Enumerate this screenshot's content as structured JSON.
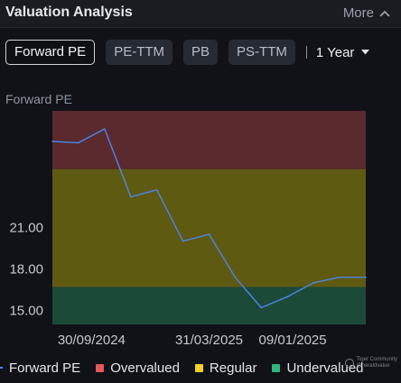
{
  "header": {
    "title": "Valuation Analysis",
    "more_label": "More"
  },
  "tabs": [
    {
      "label": "Forward PE",
      "active": true
    },
    {
      "label": "PE-TTM",
      "active": false
    },
    {
      "label": "PB",
      "active": false
    },
    {
      "label": "PS-TTM",
      "active": false
    }
  ],
  "period": {
    "label": "1 Year"
  },
  "chart_label": "Forward PE",
  "colors": {
    "overvalued": "#5a2a2e",
    "regular": "#5f5a12",
    "undervalued": "#1c4a39",
    "line": "#4c86e8"
  },
  "legend": [
    {
      "label": "Forward PE",
      "kind": "line",
      "color": "#4c86e8"
    },
    {
      "label": "Overvalued",
      "kind": "box",
      "color": "#e35a5a"
    },
    {
      "label": "Regular",
      "kind": "box",
      "color": "#f0cf2a"
    },
    {
      "label": "Undervalued",
      "kind": "box",
      "color": "#2fb57a"
    }
  ],
  "watermark": {
    "line1": "Tiger Community",
    "line2": "@heraldvalue"
  },
  "chart_data": {
    "type": "area",
    "title": "",
    "xlabel": "",
    "ylabel": "",
    "ylim": [
      14.0,
      29.4
    ],
    "grid": false,
    "y_ticks": [
      "15.00",
      "18.00",
      "21.00"
    ],
    "y_tick_values": [
      15,
      18,
      21
    ],
    "x_ticks": [
      "30/09/2024",
      "31/03/2025",
      "09/01/2025"
    ],
    "x_tick_positions": [
      1.5,
      6.0,
      10.5
    ],
    "bands": [
      {
        "name": "Overvualued",
        "from": 25.2,
        "to": 29.4
      },
      {
        "name": "Regular",
        "from": 16.7,
        "to": 25.2
      },
      {
        "name": "Undervalued",
        "from": 14.0,
        "to": 16.7
      }
    ],
    "series": [
      {
        "name": "Forward PE",
        "x": [
          0,
          1,
          2,
          3,
          4,
          5,
          6,
          7,
          8,
          9,
          10,
          11,
          12
        ],
        "values": [
          27.2,
          27.1,
          28.1,
          23.2,
          23.7,
          20.0,
          20.5,
          17.4,
          15.2,
          16.0,
          17.0,
          17.4,
          17.4
        ]
      }
    ]
  }
}
